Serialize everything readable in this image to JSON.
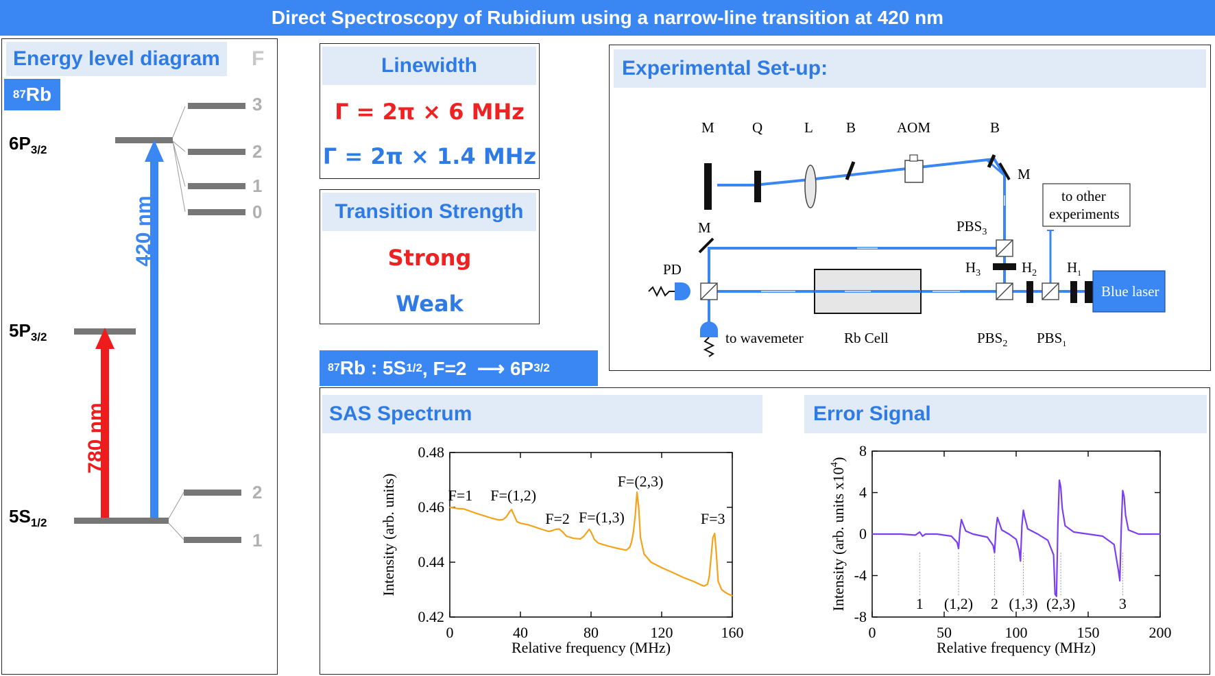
{
  "title": "Direct Spectroscopy of Rubidium using a narrow-line transition at 420 nm",
  "energy": {
    "header": "Energy level diagram",
    "f_label": "F",
    "isotope_sup": "87",
    "isotope": "Rb",
    "levels": [
      {
        "name": "6P",
        "sub": "3/2"
      },
      {
        "name": "5P",
        "sub": "3/2"
      },
      {
        "name": "5S",
        "sub": "1/2"
      }
    ],
    "hyperfine_6p": [
      "3",
      "2",
      "1",
      "0"
    ],
    "hyperfine_5s": [
      "2",
      "1"
    ],
    "arrow_blue": "420 nm",
    "arrow_red": "780 nm",
    "colors": {
      "blue": "#3a86f2",
      "red": "#ee1c1c",
      "level": "#777777",
      "hf_text": "#aaaaaa"
    }
  },
  "linewidth": {
    "header": "Linewidth",
    "red_line": "Γ = 2π × 6 MHz",
    "blue_line": "Γ = 2π × 1.4 MHz"
  },
  "strength": {
    "header": "Transition Strength",
    "strong": "Strong",
    "weak": "Weak"
  },
  "transition": {
    "sup": "87",
    "part1": "Rb : 5S",
    "sub1": "1/2",
    "part2": ", F=2  ⟶ 6P",
    "sub2": "3/2"
  },
  "setup": {
    "header": "Experimental Set-up:",
    "labels": {
      "m1": "M",
      "q": "Q",
      "l": "L",
      "b1": "B",
      "aom": "AOM",
      "b2": "B",
      "m2": "M",
      "to_other_1": "to other",
      "to_other_2": "experiments",
      "m3": "M",
      "pbs3": "PBS",
      "pbs3_sub": "3",
      "pd": "PD",
      "h3": "H",
      "h3_sub": "3",
      "h2": "H",
      "h2_sub": "2",
      "h1": "H",
      "h1_sub": "1",
      "blue_laser": "Blue laser",
      "to_wavemeter": "to wavemeter",
      "rb_cell": "Rb Cell",
      "pbs2": "PBS",
      "pbs2_sub": "2",
      "pbs1": "PBS",
      "pbs1_sub": "1"
    }
  },
  "chart_data": [
    {
      "type": "line",
      "panel_title": "SAS Spectrum",
      "xlabel": "Relative frequency (MHz)",
      "ylabel": "Intensity (arb. units)",
      "xlim": [
        0,
        160
      ],
      "ylim": [
        0.42,
        0.48
      ],
      "xticks": [
        0,
        40,
        80,
        120,
        160
      ],
      "yticks": [
        0.42,
        0.44,
        0.46,
        0.48
      ],
      "color": "#f5a21b",
      "x": [
        0,
        4,
        8,
        12,
        16,
        20,
        24,
        28,
        30,
        32,
        34,
        35,
        36,
        38,
        40,
        44,
        48,
        52,
        56,
        58,
        60,
        62,
        64,
        66,
        70,
        74,
        76,
        78,
        79,
        80,
        82,
        84,
        88,
        92,
        96,
        100,
        102,
        103,
        104,
        105,
        106,
        107,
        108,
        110,
        114,
        120,
        126,
        132,
        138,
        142,
        144,
        146,
        147,
        148,
        149,
        150,
        151,
        152,
        154,
        156,
        158,
        160
      ],
      "y": [
        0.46,
        0.4596,
        0.4594,
        0.4585,
        0.4576,
        0.4568,
        0.456,
        0.4554,
        0.4555,
        0.4565,
        0.4585,
        0.4592,
        0.4577,
        0.4548,
        0.4542,
        0.4537,
        0.4529,
        0.452,
        0.4512,
        0.4515,
        0.452,
        0.4521,
        0.451,
        0.4495,
        0.4487,
        0.4485,
        0.4495,
        0.4512,
        0.452,
        0.451,
        0.4482,
        0.447,
        0.4462,
        0.4455,
        0.4449,
        0.4444,
        0.4455,
        0.4475,
        0.451,
        0.4568,
        0.4655,
        0.46,
        0.449,
        0.443,
        0.44,
        0.438,
        0.4363,
        0.4345,
        0.433,
        0.4318,
        0.4313,
        0.432,
        0.435,
        0.442,
        0.449,
        0.4505,
        0.443,
        0.433,
        0.43,
        0.429,
        0.4283,
        0.4278
      ],
      "annotations": [
        {
          "text": "F=1",
          "x": 6,
          "y": 0.4625
        },
        {
          "text": "F=(1,2)",
          "x": 36,
          "y": 0.4625
        },
        {
          "text": "F=2",
          "x": 61,
          "y": 0.454
        },
        {
          "text": "F=(1,3)",
          "x": 86,
          "y": 0.4545
        },
        {
          "text": "F=(2,3)",
          "x": 108,
          "y": 0.4676
        },
        {
          "text": "F=3",
          "x": 149,
          "y": 0.454
        }
      ]
    },
    {
      "type": "line",
      "panel_title": "Error Signal",
      "xlabel": "Relative frequency (MHz)",
      "ylabel": "Intensity (arb. units x10",
      "ylabel_sup": "4",
      "ylabel_end": ")",
      "xlim": [
        0,
        200
      ],
      "ylim": [
        -8,
        8
      ],
      "xticks": [
        0,
        50,
        100,
        150,
        200
      ],
      "yticks": [
        -8,
        -4,
        0,
        4,
        8
      ],
      "color": "#7b3ff0",
      "x": [
        0,
        10,
        20,
        30,
        33,
        35,
        37,
        45,
        55,
        59,
        60,
        61,
        62,
        63,
        65,
        70,
        80,
        84,
        85,
        86,
        87,
        88,
        90,
        95,
        100,
        102,
        103,
        104,
        105,
        106,
        108,
        115,
        122,
        126,
        127,
        128,
        129,
        130,
        131,
        132,
        134,
        140,
        150,
        160,
        168,
        171,
        172,
        173,
        174,
        175,
        176,
        178,
        185,
        200
      ],
      "y": [
        0,
        0,
        0,
        -0.1,
        0.2,
        -0.2,
        0,
        0,
        -0.2,
        -0.8,
        -1.4,
        0.4,
        1.4,
        1.0,
        0.3,
        0,
        -0.3,
        -1.1,
        -1.8,
        0.5,
        1.6,
        1.2,
        0.4,
        0,
        -0.5,
        -1.5,
        -2.6,
        0.8,
        2.3,
        1.6,
        0.5,
        0,
        -0.6,
        -2.0,
        -5.8,
        -6.0,
        1.0,
        5.2,
        4.5,
        2.5,
        0.8,
        0.2,
        0,
        -0.2,
        -1.0,
        -3.5,
        -4.5,
        0.6,
        4.2,
        3.6,
        1.8,
        0.4,
        0,
        0
      ],
      "markers": [
        {
          "text": "1",
          "x": 33
        },
        {
          "text": "(1,2)",
          "x": 60
        },
        {
          "text": "2",
          "x": 85
        },
        {
          "text": "(1,3)",
          "x": 105
        },
        {
          "text": "(2,3)",
          "x": 131
        },
        {
          "text": "3",
          "x": 174
        }
      ]
    }
  ]
}
